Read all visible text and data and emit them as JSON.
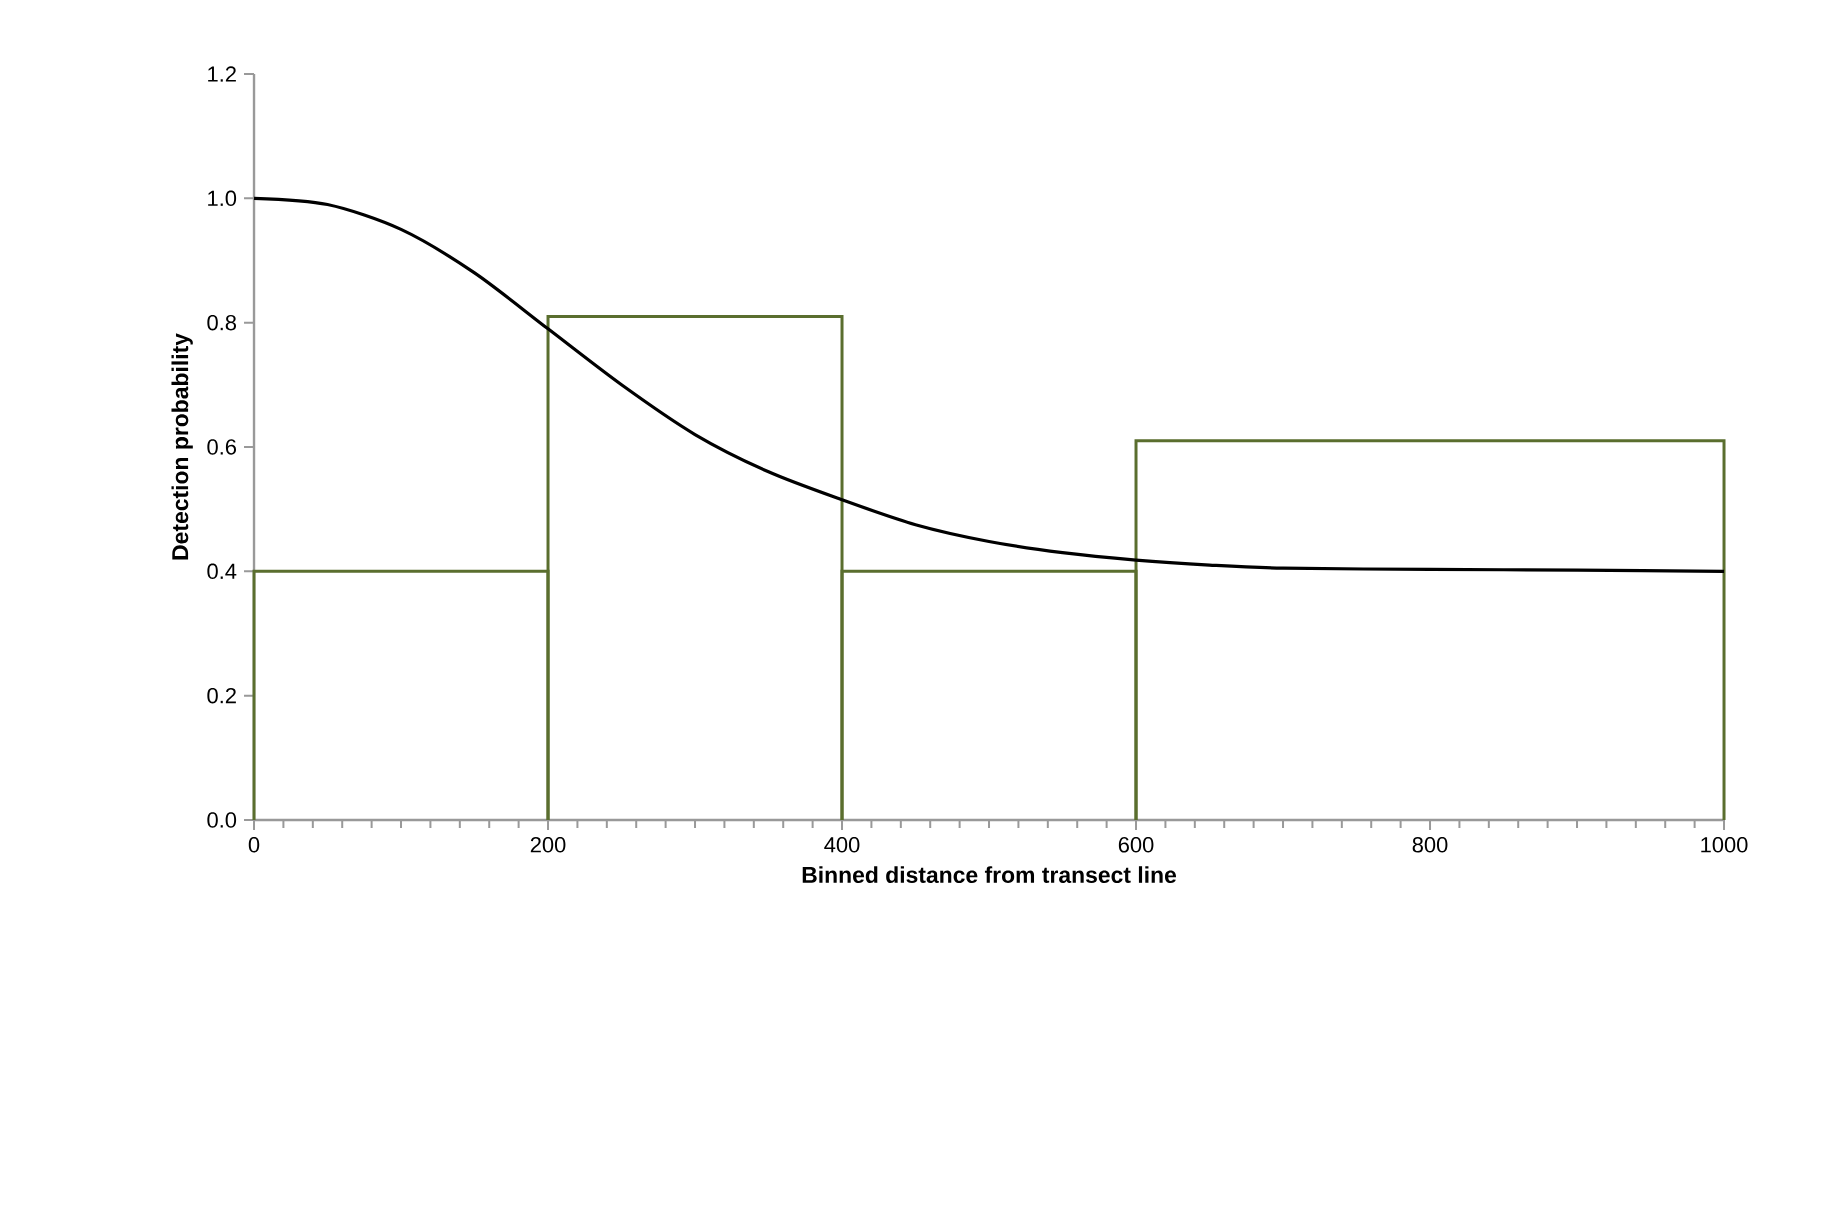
{
  "chart_data": {
    "type": "histogram",
    "xlabel": "Binned distance from transect line",
    "ylabel": "Detection probability",
    "xlim": [
      0,
      1000
    ],
    "xticks": [
      0,
      200,
      400,
      600,
      800,
      1000
    ],
    "ylim": [
      0,
      1.2
    ],
    "yticks": [
      {
        "value": 0,
        "label": "0.0"
      },
      {
        "value": 0.2,
        "label": "0.2"
      },
      {
        "value": 0.4,
        "label": "0.4"
      },
      {
        "value": 0.6,
        "label": "0.6"
      },
      {
        "value": 0.8,
        "label": "0.8"
      },
      {
        "value": 1.0,
        "label": "1.0"
      },
      {
        "value": 1.2,
        "label": "1.2"
      }
    ],
    "grid": false,
    "series": [
      {
        "color": "#5a6e2e",
        "bins": [
          0,
          200,
          400,
          600,
          1000
        ],
        "values": [
          0.4,
          0.81,
          0.4,
          0.61
        ]
      },
      {
        "type": "line",
        "color": "#000000",
        "x": [
          0,
          50,
          100,
          150,
          200,
          250,
          300,
          350,
          400,
          450,
          500,
          550,
          600,
          650,
          700,
          800,
          900,
          1000
        ],
        "values": [
          1.0,
          0.99,
          0.95,
          0.88,
          0.79,
          0.7,
          0.62,
          0.56,
          0.515,
          0.475,
          0.448,
          0.43,
          0.418,
          0.41,
          0.405,
          0.403,
          0.402,
          0.4
        ]
      }
    ]
  }
}
